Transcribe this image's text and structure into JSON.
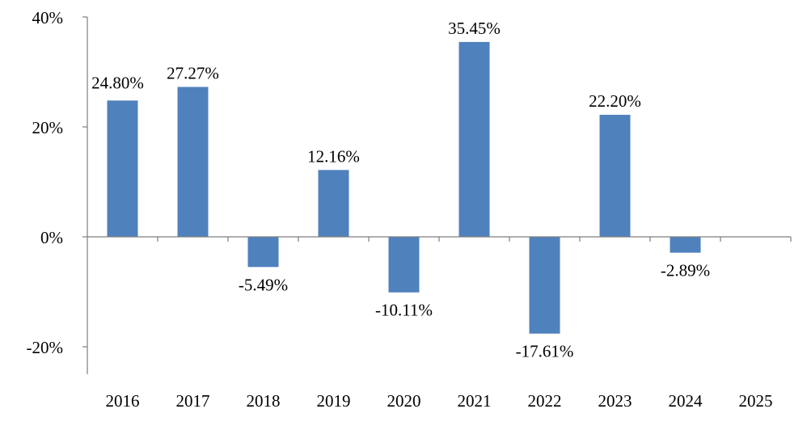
{
  "chart_data": {
    "type": "bar",
    "title": "",
    "xlabel": "",
    "ylabel": "",
    "categories": [
      "2016",
      "2017",
      "2018",
      "2019",
      "2020",
      "2021",
      "2022",
      "2023",
      "2024",
      "2025"
    ],
    "values": [
      24.8,
      27.27,
      -5.49,
      12.16,
      -10.11,
      35.45,
      -17.61,
      22.2,
      -2.89,
      null
    ],
    "data_labels": [
      "24.80%",
      "27.27%",
      "-5.49%",
      "12.16%",
      "-10.11%",
      "35.45%",
      "-17.61%",
      "22.20%",
      "-2.89%",
      ""
    ],
    "y_ticks": [
      {
        "value": 40,
        "label": "40%"
      },
      {
        "value": 20,
        "label": "20%"
      },
      {
        "value": 0,
        "label": "0%"
      },
      {
        "value": -20,
        "label": "-20%"
      }
    ],
    "ylim": [
      -25,
      40
    ],
    "grid": false,
    "legend": "none",
    "colors": {
      "bar": "#4f81bd",
      "axis": "#7f7f7f",
      "text": "#000000"
    }
  }
}
